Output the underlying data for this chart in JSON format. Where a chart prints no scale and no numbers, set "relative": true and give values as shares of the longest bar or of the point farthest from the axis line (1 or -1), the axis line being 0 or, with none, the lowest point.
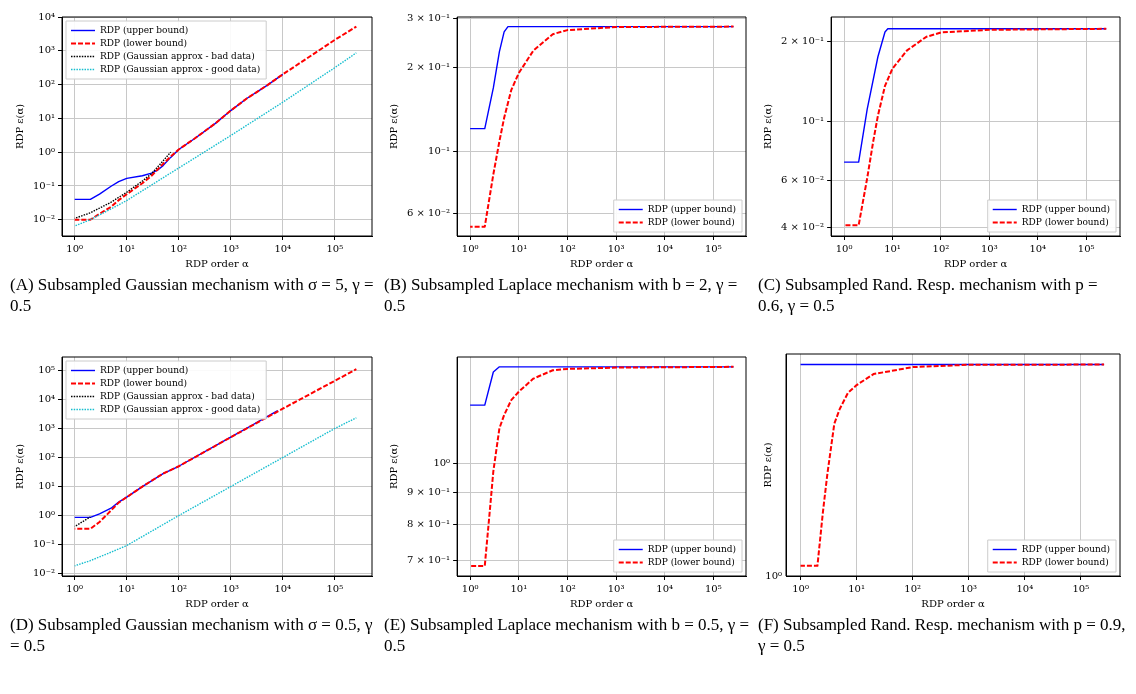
{
  "chart_data": [
    {
      "type": "line",
      "title": "(A) Subsampled Gaussian mechanism with σ = 5, γ = 0.5",
      "xlabel": "RDP order α",
      "ylabel": "RDP ε(α)",
      "log": "xy",
      "grid": true,
      "legend": "top left",
      "xlim": [
        0.57,
        520000
      ],
      "ylim": [
        0.0033,
        10000
      ],
      "xticks": [
        {
          "value": 1,
          "label": "10⁰"
        },
        {
          "value": 10,
          "label": "10¹"
        },
        {
          "value": 100,
          "label": "10²"
        },
        {
          "value": 1000,
          "label": "10³"
        },
        {
          "value": 10000,
          "label": "10⁴"
        },
        {
          "value": 100000,
          "label": "10⁵"
        }
      ],
      "yticks": [
        {
          "value": 0.01,
          "label": "10⁻²"
        },
        {
          "value": 0.1,
          "label": "10⁻¹"
        },
        {
          "value": 1,
          "label": "10⁰"
        },
        {
          "value": 10,
          "label": "10¹"
        },
        {
          "value": 100,
          "label": "10²"
        },
        {
          "value": 1000,
          "label": "10³"
        },
        {
          "value": 10000,
          "label": "10⁴"
        }
      ],
      "series": [
        {
          "name": "RDP (upper bound)",
          "color": "#0000ff",
          "line_style": "solid",
          "x": [
            1,
            2,
            3,
            5,
            7,
            10,
            20,
            30,
            40,
            50,
            70,
            100,
            200,
            500,
            1000,
            2000,
            5000,
            10000
          ],
          "values": [
            0.04,
            0.04,
            0.057,
            0.098,
            0.135,
            0.168,
            0.2,
            0.24,
            0.3,
            0.4,
            0.7,
            1.2,
            2.5,
            7,
            17,
            38,
            95,
            200
          ]
        },
        {
          "name": "RDP (lower bound)",
          "color": "#ff0000",
          "line_style": "dashed",
          "x": [
            1,
            2,
            3,
            5,
            7,
            10,
            20,
            30,
            50,
            70,
            100,
            200,
            500,
            1000,
            2000,
            5000,
            10000,
            100000,
            260000
          ],
          "values": [
            0.01,
            0.01,
            0.015,
            0.024,
            0.038,
            0.057,
            0.12,
            0.2,
            0.45,
            0.74,
            1.2,
            2.5,
            7,
            17,
            38,
            95,
            200,
            2100,
            5200
          ]
        },
        {
          "name": "RDP (Gaussian approx - bad data)",
          "color": "#000000",
          "line_style": "dotted",
          "x": [
            1,
            2,
            5,
            10,
            20,
            30,
            50,
            70
          ],
          "values": [
            0.011,
            0.016,
            0.033,
            0.065,
            0.14,
            0.23,
            0.55,
            1.0
          ]
        },
        {
          "name": "RDP (Gaussian approx - good data)",
          "color": "#17becf",
          "line_style": "dotted",
          "x": [
            1,
            2,
            5,
            10,
            100,
            1000,
            10000,
            100000,
            260000
          ],
          "values": [
            0.0065,
            0.01,
            0.021,
            0.037,
            0.34,
            3.1,
            30,
            316,
            870
          ]
        }
      ]
    },
    {
      "type": "line",
      "title": "(B) Subsampled Laplace mechanism with b = 2, γ = 0.5",
      "xlabel": "RDP order α",
      "ylabel": "RDP ε(α)",
      "log": "xy",
      "grid": true,
      "legend": "bottom right",
      "xlim": [
        0.54,
        470000
      ],
      "ylim": [
        0.05,
        0.303
      ],
      "xticks": [
        {
          "value": 1,
          "label": "10⁰"
        },
        {
          "value": 10,
          "label": "10¹"
        },
        {
          "value": 100,
          "label": "10²"
        },
        {
          "value": 1000,
          "label": "10³"
        },
        {
          "value": 10000,
          "label": "10⁴"
        },
        {
          "value": 100000,
          "label": "10⁵"
        }
      ],
      "yticks": [
        {
          "value": 0.06,
          "label": "6 × 10⁻²"
        },
        {
          "value": 0.1,
          "label": "10⁻¹"
        },
        {
          "value": 0.2,
          "label": "2 × 10⁻¹"
        },
        {
          "value": 0.3,
          "label": "3 × 10⁻¹"
        }
      ],
      "series": [
        {
          "name": "RDP (upper bound)",
          "color": "#0000ff",
          "line_style": "solid",
          "x": [
            1,
            2,
            3,
            4,
            5,
            6,
            260000
          ],
          "values": [
            0.121,
            0.121,
            0.169,
            0.228,
            0.268,
            0.28,
            0.28
          ]
        },
        {
          "name": "RDP (lower bound)",
          "color": "#ff0000",
          "line_style": "dashed",
          "x": [
            1,
            2,
            3,
            4,
            5,
            7,
            10,
            20,
            50,
            100,
            1000,
            260000
          ],
          "values": [
            0.054,
            0.054,
            0.083,
            0.109,
            0.132,
            0.166,
            0.191,
            0.23,
            0.263,
            0.272,
            0.279,
            0.28
          ]
        }
      ]
    },
    {
      "type": "line",
      "title": "(C) Subsampled Rand. Resp. mechanism with p = 0.6, γ = 0.5",
      "xlabel": "RDP order α",
      "ylabel": "RDP ε(α)",
      "log": "xy",
      "grid": true,
      "legend": "bottom right",
      "xlim": [
        0.54,
        500000
      ],
      "ylim": [
        0.037,
        0.247
      ],
      "xticks": [
        {
          "value": 1,
          "label": "10⁰"
        },
        {
          "value": 10,
          "label": "10¹"
        },
        {
          "value": 100,
          "label": "10²"
        },
        {
          "value": 1000,
          "label": "10³"
        },
        {
          "value": 10000,
          "label": "10⁴"
        },
        {
          "value": 100000,
          "label": "10⁵"
        }
      ],
      "yticks": [
        {
          "value": 0.04,
          "label": "4 × 10⁻²"
        },
        {
          "value": 0.06,
          "label": "6 × 10⁻²"
        },
        {
          "value": 0.1,
          "label": "10⁻¹"
        },
        {
          "value": 0.2,
          "label": "2 × 10⁻¹"
        }
      ],
      "series": [
        {
          "name": "RDP (upper bound)",
          "color": "#0000ff",
          "line_style": "solid",
          "x": [
            1,
            2,
            3,
            5,
            7,
            8,
            260000
          ],
          "values": [
            0.0702,
            0.0702,
            0.111,
            0.175,
            0.217,
            0.223,
            0.223
          ]
        },
        {
          "name": "RDP (lower bound)",
          "color": "#ff0000",
          "line_style": "dashed",
          "x": [
            1,
            2,
            3,
            4,
            5,
            7,
            10,
            20,
            50,
            100,
            1000,
            260000
          ],
          "values": [
            0.0406,
            0.0406,
            0.061,
            0.084,
            0.105,
            0.136,
            0.158,
            0.185,
            0.208,
            0.216,
            0.221,
            0.223
          ]
        }
      ]
    },
    {
      "type": "line",
      "title": "(D) Subsampled Gaussian mechanism with σ = 0.5, γ = 0.5",
      "xlabel": "RDP order α",
      "ylabel": "RDP ε(α)",
      "log": "xy",
      "grid": true,
      "legend": "top left",
      "xlim": [
        0.57,
        520000
      ],
      "ylim": [
        0.0083,
        290000
      ],
      "xticks": [
        {
          "value": 1,
          "label": "10⁰"
        },
        {
          "value": 10,
          "label": "10¹"
        },
        {
          "value": 100,
          "label": "10²"
        },
        {
          "value": 1000,
          "label": "10³"
        },
        {
          "value": 10000,
          "label": "10⁴"
        },
        {
          "value": 100000,
          "label": "10⁵"
        }
      ],
      "yticks": [
        {
          "value": 0.01,
          "label": "10⁻²"
        },
        {
          "value": 0.1,
          "label": "10⁻¹"
        },
        {
          "value": 1,
          "label": "10⁰"
        },
        {
          "value": 10,
          "label": "10¹"
        },
        {
          "value": 100,
          "label": "10²"
        },
        {
          "value": 1000,
          "label": "10³"
        },
        {
          "value": 10000,
          "label": "10⁴"
        },
        {
          "value": 100000,
          "label": "10⁵"
        }
      ],
      "series": [
        {
          "name": "RDP (upper bound)",
          "color": "#0000ff",
          "line_style": "solid",
          "x": [
            1,
            2,
            3,
            5,
            7,
            10,
            20,
            50,
            100,
            1000,
            8000
          ],
          "values": [
            0.87,
            0.87,
            1.15,
            1.8,
            2.9,
            4.3,
            10,
            28,
            50,
            500,
            4100
          ]
        },
        {
          "name": "RDP (lower bound)",
          "color": "#ff0000",
          "line_style": "dashed",
          "x": [
            1,
            2,
            3,
            5,
            7,
            10,
            20,
            50,
            100,
            1000,
            10000,
            100000,
            260000
          ],
          "values": [
            0.35,
            0.35,
            0.6,
            1.5,
            2.8,
            4.3,
            10,
            28,
            50,
            500,
            4800,
            44000,
            110000
          ]
        },
        {
          "name": "RDP (Gaussian approx - bad data)",
          "color": "#000000",
          "line_style": "dotted",
          "x": [
            1,
            2
          ],
          "values": [
            0.42,
            0.9
          ]
        },
        {
          "name": "RDP (Gaussian approx - good data)",
          "color": "#17becf",
          "line_style": "dotted",
          "x": [
            1,
            2,
            5,
            10,
            100,
            1000,
            10000,
            100000,
            260000
          ],
          "values": [
            0.0186,
            0.028,
            0.055,
            0.093,
            1.0,
            10,
            100,
            1000,
            2340
          ]
        }
      ]
    },
    {
      "type": "line",
      "title": "(E) Subsampled Laplace mechanism with b = 0.5, γ = 0.5",
      "xlabel": "RDP order α",
      "ylabel": "RDP ε(α)",
      "log": "xy",
      "grid": true,
      "legend": "bottom right",
      "xlim": [
        0.54,
        470000
      ],
      "ylim": [
        0.66,
        1.484
      ],
      "xticks": [
        {
          "value": 1,
          "label": "10⁰"
        },
        {
          "value": 10,
          "label": "10¹"
        },
        {
          "value": 100,
          "label": "10²"
        },
        {
          "value": 1000,
          "label": "10³"
        },
        {
          "value": 10000,
          "label": "10⁴"
        },
        {
          "value": 100000,
          "label": "10⁵"
        }
      ],
      "yticks": [
        {
          "value": 0.7,
          "label": "7 × 10⁻¹"
        },
        {
          "value": 0.8,
          "label": "8 × 10⁻¹"
        },
        {
          "value": 0.9,
          "label": "9 × 10⁻¹"
        },
        {
          "value": 1,
          "label": "10⁰"
        }
      ],
      "series": [
        {
          "name": "RDP (upper bound)",
          "color": "#0000ff",
          "line_style": "solid",
          "x": [
            1,
            2,
            3,
            4,
            260000
          ],
          "values": [
            1.242,
            1.242,
            1.404,
            1.431,
            1.431
          ]
        },
        {
          "name": "RDP (lower bound)",
          "color": "#ff0000",
          "line_style": "dashed",
          "x": [
            1,
            2,
            2.5,
            3,
            4,
            5,
            7,
            10,
            20,
            50,
            100,
            1000,
            260000
          ],
          "values": [
            0.685,
            0.685,
            0.829,
            0.972,
            1.14,
            1.197,
            1.265,
            1.305,
            1.37,
            1.413,
            1.42,
            1.427,
            1.431
          ]
        }
      ]
    },
    {
      "type": "line",
      "title": "(F) Subsampled Rand. Resp. mechanism with p = 0.9, γ = 0.5",
      "xlabel": "RDP order α",
      "ylabel": "RDP ε(α)",
      "log": "x",
      "grid": "x",
      "relative": true,
      "legend": "bottom right",
      "annotations": [
        "10⁰"
      ],
      "xlim": [
        0.55,
        500000
      ],
      "xticks": [
        {
          "value": 1,
          "label": "10⁰"
        },
        {
          "value": 10,
          "label": "10¹"
        },
        {
          "value": 100,
          "label": "10²"
        },
        {
          "value": 1000,
          "label": "10³"
        },
        {
          "value": 10000,
          "label": "10⁴"
        },
        {
          "value": 100000,
          "label": "10⁵"
        }
      ],
      "series": [
        {
          "name": "RDP (upper bound)",
          "color": "#0000ff",
          "line_style": "solid",
          "x": [
            1,
            260000
          ],
          "values": [
            1,
            1
          ]
        },
        {
          "name": "RDP (lower bound)",
          "color": "#ff0000",
          "line_style": "dashed",
          "x": [
            1,
            2,
            2.5,
            3,
            4,
            5,
            7,
            10,
            20,
            100,
            1000,
            260000
          ],
          "values": [
            0.048,
            0.048,
            0.3,
            0.48,
            0.72,
            0.79,
            0.866,
            0.903,
            0.955,
            0.988,
            0.999,
            1
          ]
        }
      ]
    }
  ]
}
